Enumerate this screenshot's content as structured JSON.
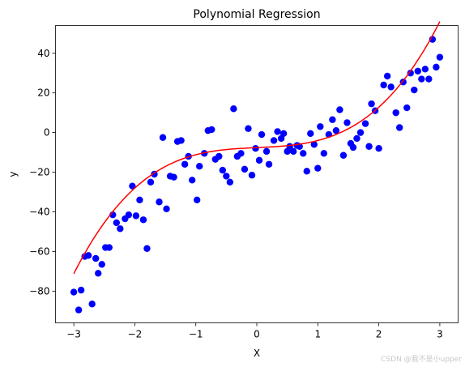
{
  "chart_data": {
    "type": "scatter",
    "title": "Polynomial Regression",
    "xlabel": "X",
    "ylabel": "y",
    "xlim": [
      -3.3,
      3.3
    ],
    "ylim": [
      -96,
      54
    ],
    "xticks": [
      -3,
      -2,
      -1,
      0,
      1,
      2,
      3
    ],
    "yticks": [
      -80,
      -60,
      -40,
      -20,
      0,
      20,
      40
    ],
    "grid": false,
    "series": [
      {
        "kind": "scatter",
        "color": "#0000ff",
        "points": [
          [
            -3.0,
            -80.5
          ],
          [
            -2.92,
            -89.5
          ],
          [
            -2.88,
            -79.5
          ],
          [
            -2.82,
            -62.5
          ],
          [
            -2.76,
            -62
          ],
          [
            -2.7,
            -86.5
          ],
          [
            -2.64,
            -63.5
          ],
          [
            -2.6,
            -71
          ],
          [
            -2.54,
            -66.5
          ],
          [
            -2.48,
            -58
          ],
          [
            -2.42,
            -58
          ],
          [
            -2.36,
            -41.5
          ],
          [
            -2.3,
            -45.5
          ],
          [
            -2.24,
            -48.5
          ],
          [
            -2.16,
            -43.5
          ],
          [
            -2.1,
            -41.5
          ],
          [
            -2.04,
            -27
          ],
          [
            -1.98,
            -42
          ],
          [
            -1.92,
            -34
          ],
          [
            -1.86,
            -44
          ],
          [
            -1.8,
            -58.5
          ],
          [
            -1.74,
            -25
          ],
          [
            -1.68,
            -21
          ],
          [
            -1.6,
            -35
          ],
          [
            -1.54,
            -2.5
          ],
          [
            -1.48,
            -38.5
          ],
          [
            -1.42,
            -22
          ],
          [
            -1.36,
            -22.5
          ],
          [
            -1.3,
            -4.5
          ],
          [
            -1.24,
            -4
          ],
          [
            -1.18,
            -16
          ],
          [
            -1.12,
            -12
          ],
          [
            -1.06,
            -24
          ],
          [
            -0.98,
            -34
          ],
          [
            -0.94,
            -17
          ],
          [
            -0.86,
            -10.5
          ],
          [
            -0.8,
            1
          ],
          [
            -0.74,
            1.5
          ],
          [
            -0.68,
            -13.5
          ],
          [
            -0.62,
            -12
          ],
          [
            -0.56,
            -19
          ],
          [
            -0.5,
            -22
          ],
          [
            -0.44,
            -25
          ],
          [
            -0.38,
            12
          ],
          [
            -0.32,
            -12
          ],
          [
            -0.26,
            -10.5
          ],
          [
            -0.2,
            -18.5
          ],
          [
            -0.14,
            2
          ],
          [
            -0.08,
            -21.5
          ],
          [
            -0.02,
            -8
          ],
          [
            0.04,
            -14
          ],
          [
            0.08,
            -1
          ],
          [
            0.16,
            -9.5
          ],
          [
            0.2,
            -16
          ],
          [
            0.28,
            -4
          ],
          [
            0.34,
            0.5
          ],
          [
            0.4,
            -3
          ],
          [
            0.44,
            -0.5
          ],
          [
            0.5,
            -9.5
          ],
          [
            0.54,
            -7
          ],
          [
            0.6,
            -9.5
          ],
          [
            0.66,
            -6.5
          ],
          [
            0.7,
            -7
          ],
          [
            0.76,
            -10.5
          ],
          [
            0.82,
            -19.5
          ],
          [
            0.88,
            -0.5
          ],
          [
            0.94,
            -6
          ],
          [
            1.0,
            -18
          ],
          [
            1.04,
            3
          ],
          [
            1.1,
            -10.5
          ],
          [
            1.18,
            -1
          ],
          [
            1.24,
            6.5
          ],
          [
            1.3,
            1
          ],
          [
            1.36,
            11.5
          ],
          [
            1.42,
            -11.5
          ],
          [
            1.48,
            5
          ],
          [
            1.54,
            -5.5
          ],
          [
            1.58,
            -7.5
          ],
          [
            1.64,
            -3
          ],
          [
            1.7,
            0
          ],
          [
            1.78,
            4.5
          ],
          [
            1.84,
            -7
          ],
          [
            1.88,
            14.5
          ],
          [
            1.94,
            11
          ],
          [
            2.0,
            -8
          ],
          [
            2.08,
            24
          ],
          [
            2.14,
            28.5
          ],
          [
            2.2,
            23
          ],
          [
            2.28,
            10
          ],
          [
            2.34,
            2.5
          ],
          [
            2.4,
            25.5
          ],
          [
            2.46,
            12.5
          ],
          [
            2.52,
            30
          ],
          [
            2.58,
            21.5
          ],
          [
            2.64,
            31
          ],
          [
            2.7,
            27
          ],
          [
            2.76,
            32
          ],
          [
            2.82,
            27
          ],
          [
            2.88,
            47
          ],
          [
            2.94,
            33
          ],
          [
            3.0,
            38
          ]
        ]
      },
      {
        "kind": "line",
        "color": "#ff0000",
        "fit": {
          "a3": 2.2,
          "a2": 0.0,
          "a1": 1.4,
          "a0": -7.6
        }
      }
    ]
  },
  "watermark": "CSDN @我不是小upper"
}
